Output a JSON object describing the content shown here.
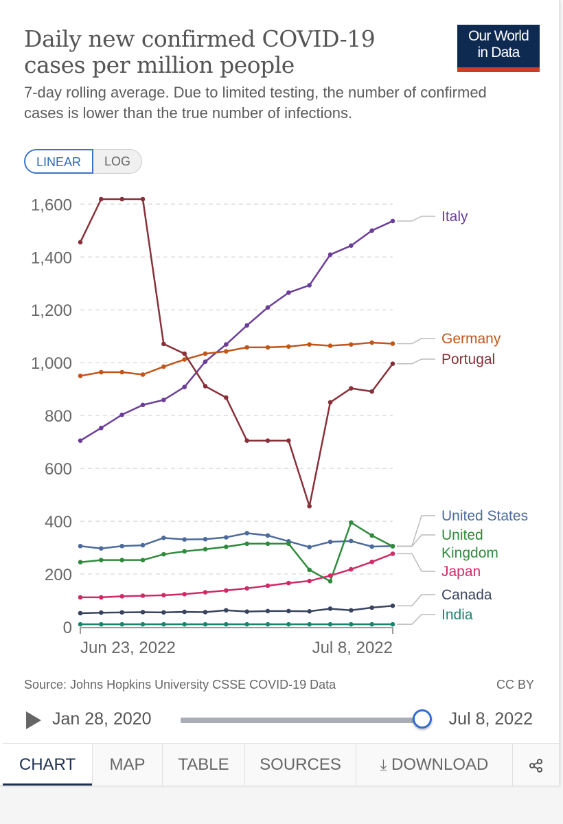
{
  "header": {
    "title": "Daily new confirmed COVID-19 cases per million people",
    "subtitle": "7-day rolling average. Due to limited testing, the number of confirmed cases is lower than the true number of infections.",
    "logo_line1": "Our World",
    "logo_line2": "in Data"
  },
  "toggle": {
    "linear": "LINEAR",
    "log": "LOG"
  },
  "chart_data": {
    "type": "line",
    "title": "Daily new confirmed COVID-19 cases per million people",
    "xlabel": "",
    "ylabel": "",
    "x_start": "Jun 23, 2022",
    "x_end": "Jul 8, 2022",
    "x_ticks": [
      "Jun 23, 2022",
      "Jul 8, 2022"
    ],
    "y_ticks": [
      0,
      200,
      400,
      600,
      800,
      1000,
      1200,
      1400,
      1600
    ],
    "y_tick_labels": [
      "0",
      "200",
      "400",
      "600",
      "800",
      "1,000",
      "1,200",
      "1,400",
      "1,600"
    ],
    "ylim": [
      0,
      1600
    ],
    "grid": true,
    "legend_placement": "right (end labels)",
    "series": [
      {
        "name": "Italy",
        "color": "#6b3d98",
        "values": [
          705,
          753,
          803,
          840,
          859,
          908,
          1004,
          1069,
          1141,
          1209,
          1265,
          1293,
          1409,
          1443,
          1500,
          1536
        ]
      },
      {
        "name": "Germany",
        "color": "#c0561a",
        "values": [
          950,
          964,
          964,
          955,
          985,
          1012,
          1034,
          1043,
          1058,
          1058,
          1061,
          1069,
          1064,
          1069,
          1076,
          1072
        ]
      },
      {
        "name": "Portugal",
        "color": "#883039",
        "values": [
          1456,
          1619,
          1619,
          1619,
          1071,
          1034,
          911,
          868,
          705,
          705,
          705,
          457,
          850,
          903,
          891,
          996
        ]
      },
      {
        "name": "United States",
        "color": "#4c6a9c",
        "values": [
          306,
          297,
          306,
          309,
          337,
          331,
          332,
          339,
          355,
          346,
          324,
          302,
          322,
          325,
          304,
          306
        ]
      },
      {
        "name": "United Kingdom",
        "color": "#2f8a3c",
        "values": [
          245,
          253,
          253,
          253,
          275,
          286,
          294,
          303,
          315,
          315,
          315,
          216,
          173,
          395,
          346,
          305
        ]
      },
      {
        "name": "Japan",
        "color": "#cf2a66",
        "values": [
          112,
          112,
          116,
          118,
          120,
          124,
          131,
          138,
          146,
          156,
          166,
          174,
          194,
          218,
          246,
          277
        ]
      },
      {
        "name": "Canada",
        "color": "#38445f",
        "values": [
          52,
          54,
          55,
          56,
          55,
          57,
          56,
          63,
          58,
          60,
          60,
          59,
          69,
          63,
          73,
          80
        ]
      },
      {
        "name": "India",
        "color": "#18866e",
        "values": [
          10,
          10,
          10,
          10,
          10,
          10,
          10,
          10,
          10,
          10,
          10,
          10,
          10,
          10,
          10,
          10
        ]
      }
    ]
  },
  "footer": {
    "source": "Source: Johns Hopkins University CSSE COVID-19 Data",
    "license": "CC BY",
    "timeline_start": "Jan 28, 2020",
    "timeline_end": "Jul 8, 2022",
    "timeline_position": 1.0
  },
  "tabs": [
    "CHART",
    "MAP",
    "TABLE",
    "SOURCES",
    "DOWNLOAD"
  ]
}
